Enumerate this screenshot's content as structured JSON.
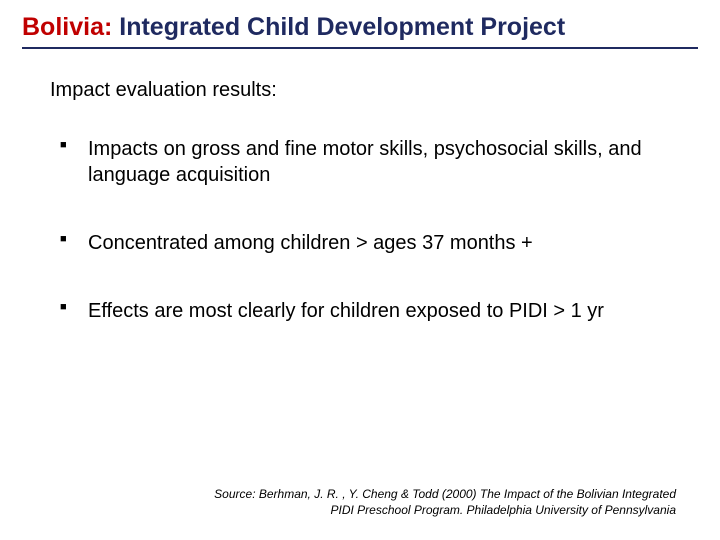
{
  "title": {
    "accent": "Bolivia:",
    "main": " Integrated Child Development Project",
    "accent_color": "#c00000",
    "main_color": "#1f2a60",
    "fontsize": 25
  },
  "underline": {
    "color": "#1f2a60",
    "height": 2
  },
  "intro": {
    "text": "Impact evaluation results:",
    "fontsize": 20
  },
  "bullets": {
    "items": [
      "Impacts on gross and fine motor skills, psychosocial skills, and language acquisition",
      "Concentrated among children > ages 37 months +",
      "Effects are most clearly for children exposed to PIDI > 1 yr"
    ],
    "fontsize": 20,
    "marker": "■",
    "marker_color": "#000000"
  },
  "source": {
    "text": "Source: Berhman, J. R. , Y. Cheng & Todd (2000) The Impact of the Bolivian Integrated PIDI Preschool Program. Philadelphia University of Pennsylvania",
    "fontsize": 12,
    "italic": true
  },
  "background_color": "#ffffff"
}
